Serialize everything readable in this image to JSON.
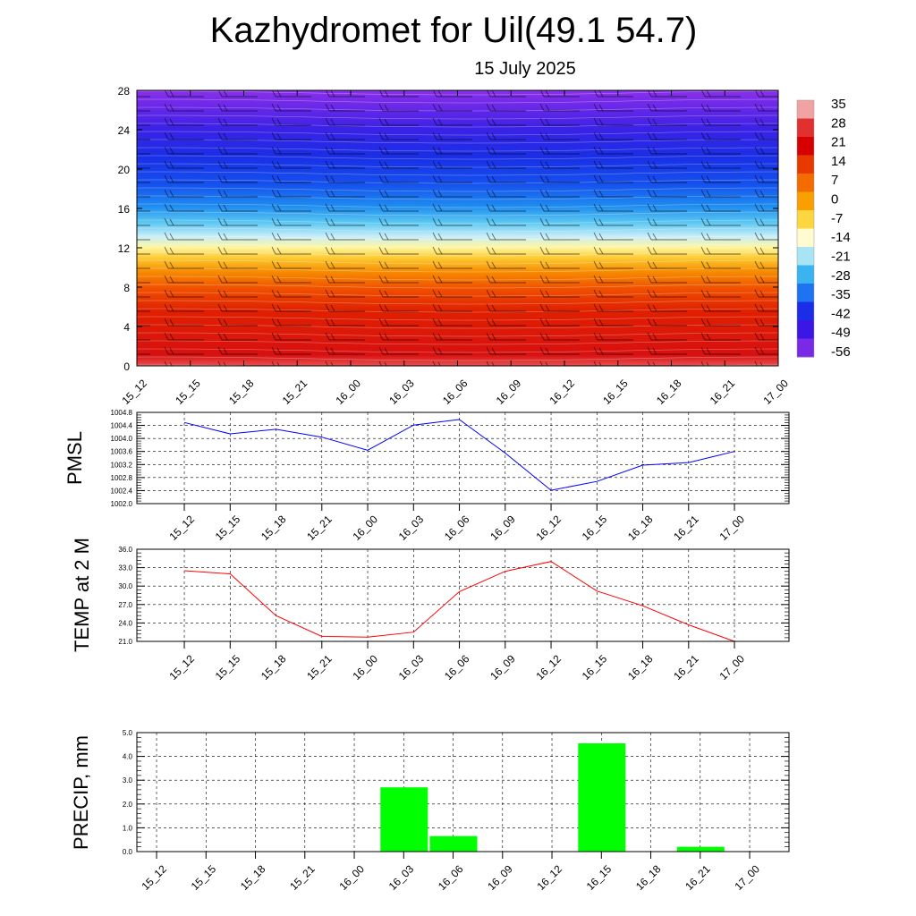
{
  "title": "Kazhydromet for Uil(49.1 54.7)",
  "subtitle": "15 July 2025",
  "time_labels": [
    "15_12",
    "15_15",
    "15_18",
    "15_21",
    "16_00",
    "16_03",
    "16_06",
    "16_09",
    "16_12",
    "16_15",
    "16_18",
    "16_21",
    "17_00"
  ],
  "chart_data": [
    {
      "type": "heatmap",
      "description_axes": {
        "ylim": [
          0,
          28
        ]
      },
      "yticks": [
        "0",
        "4",
        "8",
        "12",
        "16",
        "20",
        "24",
        "28"
      ],
      "colorbar": {
        "labels": [
          "35",
          "28",
          "21",
          "14",
          "7",
          "0",
          "-7",
          "-14",
          "-21",
          "-28",
          "-35",
          "-42",
          "-49",
          "-56"
        ],
        "colors": [
          "#f1a3a3",
          "#e03030",
          "#d60000",
          "#e83a00",
          "#f26c00",
          "#f9a000",
          "#fcd740",
          "#fffbd0",
          "#a7e5f5",
          "#39b4f0",
          "#1e73f0",
          "#1c2de8",
          "#3b17e6",
          "#7a2ae6"
        ]
      }
    },
    {
      "type": "line",
      "ylabel": "PMSL",
      "ylim": [
        1002.0,
        1004.8
      ],
      "yticks": [
        "1002.0",
        "1002.4",
        "1002.8",
        "1003.2",
        "1003.6",
        "1004.0",
        "1004.4",
        "1004.8"
      ],
      "x": [
        "15_12",
        "15_15",
        "15_18",
        "15_21",
        "16_00",
        "16_03",
        "16_06",
        "16_09",
        "16_12",
        "16_15",
        "16_18",
        "16_21",
        "17_00"
      ],
      "values": [
        1004.49,
        1004.14,
        1004.28,
        1004.04,
        1003.64,
        1004.41,
        1004.58,
        1003.55,
        1002.41,
        1002.68,
        1003.18,
        1003.26,
        1003.6
      ],
      "color": "#0000ff"
    },
    {
      "type": "line",
      "ylabel": "TEMP at 2 M",
      "ylim": [
        21.0,
        36.0
      ],
      "yticks": [
        "21.0",
        "24.0",
        "27.0",
        "30.0",
        "33.0",
        "36.0"
      ],
      "x": [
        "15_12",
        "15_15",
        "15_18",
        "15_21",
        "16_00",
        "16_03",
        "16_06",
        "16_09",
        "16_12",
        "16_15",
        "16_18",
        "16_21",
        "17_00"
      ],
      "values": [
        32.5,
        32.0,
        25.2,
        21.8,
        21.7,
        22.5,
        29.1,
        32.4,
        34.0,
        29.2,
        26.8,
        23.7,
        21.0
      ],
      "color": "#ff0000"
    },
    {
      "type": "bar",
      "ylabel": "PRECIP, mm",
      "ylim": [
        0,
        5.0
      ],
      "yticks": [
        "0.0",
        "1.0",
        "2.0",
        "3.0",
        "4.0",
        "5.0"
      ],
      "categories": [
        "15_12",
        "15_15",
        "15_18",
        "15_21",
        "16_00",
        "16_03",
        "16_06",
        "16_09",
        "16_12",
        "16_15",
        "16_18",
        "16_21",
        "17_00"
      ],
      "values": [
        0,
        0,
        0,
        0,
        0,
        2.7,
        0.65,
        0,
        0,
        4.55,
        0,
        0.2,
        0
      ],
      "color": "#00ff00"
    }
  ]
}
